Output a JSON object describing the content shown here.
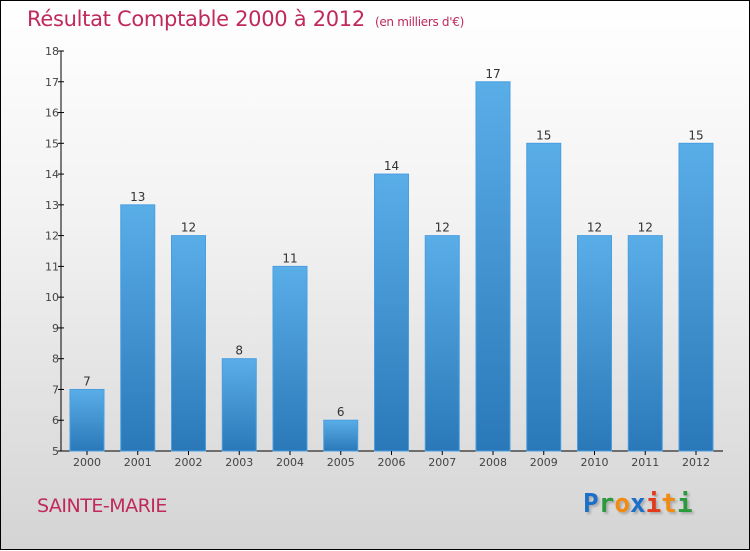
{
  "chart_data": {
    "type": "bar",
    "title": "Résultat Comptable 2000 à 2012",
    "subtitle": "(en milliers d'€)",
    "categories": [
      "2000",
      "2001",
      "2002",
      "2003",
      "2004",
      "2005",
      "2006",
      "2007",
      "2008",
      "2009",
      "2010",
      "2011",
      "2012"
    ],
    "values": [
      7,
      13,
      12,
      8,
      11,
      6,
      14,
      12,
      17,
      15,
      12,
      12,
      15
    ],
    "ylim": [
      5,
      18
    ],
    "yticks": [
      5,
      6,
      7,
      8,
      9,
      10,
      11,
      12,
      13,
      14,
      15,
      16,
      17,
      18
    ],
    "xlabel": "",
    "ylabel": "",
    "grid": false,
    "bar_color": "#3a8fd6"
  },
  "commune": "SAINTE-MARIE",
  "logo": {
    "letters": [
      "P",
      "r",
      "o",
      "x",
      "i",
      "t",
      "i"
    ],
    "colors": [
      "#1a6fc8",
      "#2a9a3a",
      "#f08a10",
      "#1a6fc8",
      "#e03a1a",
      "#f08a10",
      "#2a9a3a"
    ]
  }
}
